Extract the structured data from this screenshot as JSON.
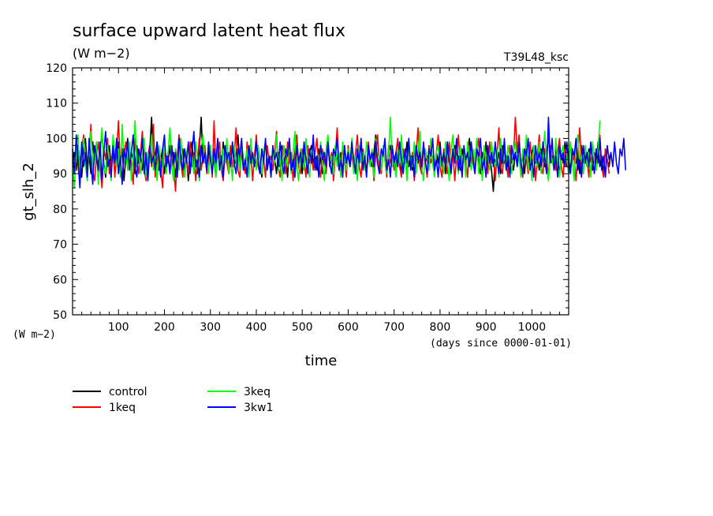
{
  "chart_data": {
    "type": "line",
    "title": "surface upward latent heat flux",
    "subtitle": "(W m−2)",
    "run_label": "T39L48_ksc",
    "xlabel": "time",
    "x_units": "(days since 0000-01-01)",
    "ylabel": "gt_slh_2",
    "y_units": "(W m−2)",
    "xlim": [
      0,
      1080
    ],
    "ylim": [
      50,
      120
    ],
    "x_ticks": [
      100,
      200,
      300,
      400,
      500,
      600,
      700,
      800,
      900,
      1000
    ],
    "y_ticks": [
      50,
      60,
      70,
      80,
      90,
      100,
      110,
      120
    ],
    "grid": false,
    "legend_position": "below",
    "x_step_days": 4,
    "series": [
      {
        "name": "control",
        "color": "#000000",
        "values": [
          93,
          96,
          91,
          98,
          94,
          89,
          97,
          100,
          92,
          95,
          90,
          99,
          94,
          97,
          91,
          96,
          102,
          93,
          89,
          95,
          98,
          92,
          96,
          90,
          94,
          99,
          93,
          97,
          88,
          95,
          100,
          92,
          96,
          94,
          90,
          98,
          93,
          95,
          91,
          97,
          94,
          89,
          96,
          106,
          92,
          95,
          99,
          91,
          94,
          97,
          90,
          95,
          93,
          98,
          92,
          96,
          89,
          94,
          101,
          93,
          97,
          91,
          95,
          88,
          96,
          99,
          92,
          94,
          90,
          97,
          106,
          93,
          95,
          91,
          96,
          98,
          92,
          94,
          89,
          97,
          95,
          91,
          99,
          93,
          96,
          90,
          94,
          98,
          92,
          95,
          101,
          93,
          97,
          91,
          94,
          96,
          90,
          98,
          93,
          95,
          92,
          97,
          94,
          89,
          96,
          99,
          93,
          95,
          91,
          97,
          94,
          90,
          96,
          92,
          98,
          93,
          95,
          89,
          97,
          94,
          92,
          96,
          101,
          93,
          95,
          90,
          97,
          94,
          92,
          96,
          98,
          93,
          95,
          91,
          97,
          94,
          90,
          96,
          93,
          99,
          92,
          95,
          91,
          97,
          94,
          93,
          96,
          90,
          98,
          93,
          95,
          92,
          97,
          94,
          91,
          96,
          93,
          99,
          92,
          95,
          90,
          97,
          94,
          92,
          96,
          101,
          93,
          95,
          91,
          97,
          94,
          92,
          96,
          98,
          93,
          95,
          91,
          97,
          94,
          90,
          96,
          93,
          99,
          92,
          95,
          91,
          97,
          94,
          93,
          96,
          90,
          98,
          93,
          95,
          92,
          97,
          94,
          91,
          96,
          93,
          99,
          92,
          95,
          90,
          97,
          94,
          92,
          96,
          98,
          93,
          95,
          91,
          97,
          94,
          92,
          96,
          100,
          93,
          95,
          91,
          97,
          94,
          90,
          96,
          93,
          99,
          92,
          95,
          91,
          85,
          94,
          93,
          96,
          90,
          98,
          93,
          95,
          92,
          97,
          94,
          91,
          96,
          93,
          99,
          92,
          95,
          90,
          97,
          94,
          92,
          96,
          98,
          93,
          95,
          91,
          97,
          94,
          92,
          96,
          101,
          93,
          95,
          91,
          97,
          94,
          90,
          96,
          93,
          99,
          92,
          95,
          91,
          97,
          94,
          93,
          96,
          90,
          98,
          93,
          95,
          92,
          97,
          94,
          91,
          96,
          93,
          99,
          92,
          95,
          90,
          97,
          94,
          92,
          96
        ]
      },
      {
        "name": "1keq",
        "color": "#ff0000",
        "values": [
          95,
          90,
          99,
          92,
          87,
          97,
          101,
          93,
          89,
          96,
          104,
          91,
          88,
          95,
          99,
          92,
          86,
          97,
          94,
          100,
          90,
          93,
          98,
          89,
          96,
          105,
          92,
          88,
          95,
          99,
          91,
          97,
          93,
          87,
          100,
          94,
          90,
          96,
          102,
          91,
          88,
          95,
          98,
          92,
          104,
          89,
          94,
          97,
          91,
          86,
          99,
          93,
          96,
          90,
          98,
          92,
          85,
          95,
          101,
          93,
          89,
          97,
          94,
          90,
          99,
          92,
          96,
          88,
          94,
          100,
          91,
          95,
          98,
          90,
          93,
          97,
          89,
          105,
          92,
          95,
          99,
          91,
          88,
          96,
          93,
          90,
          98,
          92,
          95,
          103,
          91,
          89,
          97,
          94,
          90,
          99,
          93,
          96,
          88,
          95,
          101,
          92,
          90,
          97,
          94,
          89,
          98,
          93,
          95,
          91,
          96,
          102,
          92,
          89,
          97,
          94,
          90,
          99,
          93,
          96,
          88,
          95,
          101,
          92,
          90,
          97,
          94,
          89,
          98,
          93,
          95,
          91,
          96,
          100,
          92,
          89,
          97,
          94,
          90,
          99,
          93,
          96,
          88,
          95,
          103,
          92,
          90,
          97,
          94,
          89,
          98,
          93,
          95,
          91,
          96,
          101,
          92,
          89,
          97,
          94,
          90,
          99,
          93,
          96,
          88,
          95,
          101,
          92,
          90,
          97,
          94,
          89,
          98,
          93,
          95,
          91,
          96,
          100,
          92,
          89,
          97,
          94,
          90,
          99,
          93,
          96,
          88,
          95,
          103,
          92,
          90,
          97,
          94,
          89,
          98,
          93,
          95,
          91,
          96,
          101,
          92,
          89,
          97,
          94,
          90,
          99,
          93,
          96,
          88,
          95,
          101,
          92,
          90,
          97,
          94,
          89,
          98,
          93,
          95,
          91,
          96,
          100,
          92,
          89,
          97,
          94,
          90,
          99,
          93,
          96,
          88,
          95,
          103,
          92,
          90,
          97,
          94,
          89,
          98,
          93,
          95,
          106,
          96,
          101,
          92,
          89,
          97,
          94,
          90,
          99,
          93,
          96,
          88,
          95,
          101,
          92,
          90,
          97,
          94,
          89,
          98,
          93,
          95,
          91,
          96,
          100,
          92,
          89,
          97,
          94,
          90,
          99,
          93,
          96,
          88,
          95,
          103,
          92,
          90,
          97,
          94,
          89,
          98,
          93,
          95,
          91,
          96,
          101,
          92,
          89,
          97,
          94,
          90
        ]
      },
      {
        "name": "3keq",
        "color": "#00ff00",
        "values": [
          92,
          86,
          98,
          101,
          89,
          95,
          100,
          93,
          88,
          97,
          102,
          91,
          94,
          99,
          87,
          96,
          103,
          92,
          90,
          98,
          94,
          88,
          101,
          95,
          92,
          97,
          89,
          104,
          93,
          96,
          91,
          99,
          88,
          95,
          105,
          92,
          97,
          90,
          94,
          100,
          89,
          96,
          93,
          101,
          91,
          95,
          88,
          98,
          94,
          92,
          99,
          90,
          96,
          103,
          92,
          88,
          97,
          94,
          91,
          100,
          93,
          89,
          96,
          98,
          92,
          95,
          90,
          99,
          94,
          88,
          97,
          101,
          93,
          95,
          90,
          98,
          92,
          96,
          89,
          99,
          94,
          91,
          97,
          93,
          100,
          90,
          95,
          88,
          98,
          93,
          96,
          91,
          99,
          94,
          92,
          97,
          89,
          100,
          93,
          95,
          91,
          98,
          94,
          90,
          96,
          99,
          92,
          95,
          89,
          97,
          93,
          101,
          91,
          95,
          88,
          98,
          94,
          92,
          99,
          90,
          96,
          102,
          92,
          88,
          97,
          94,
          91,
          100,
          93,
          89,
          96,
          98,
          92,
          95,
          90,
          99,
          94,
          88,
          97,
          101,
          93,
          95,
          90,
          98,
          92,
          96,
          89,
          99,
          94,
          91,
          97,
          93,
          100,
          90,
          95,
          88,
          98,
          93,
          96,
          91,
          99,
          94,
          92,
          97,
          89,
          100,
          93,
          95,
          91,
          98,
          94,
          90,
          96,
          106,
          92,
          95,
          89,
          97,
          93,
          101,
          91,
          95,
          88,
          98,
          94,
          92,
          99,
          90,
          96,
          102,
          92,
          88,
          97,
          94,
          91,
          100,
          93,
          89,
          96,
          98,
          92,
          95,
          90,
          99,
          94,
          88,
          97,
          101,
          93,
          95,
          90,
          98,
          92,
          96,
          89,
          99,
          94,
          91,
          97,
          93,
          100,
          90,
          95,
          88,
          98,
          93,
          96,
          91,
          99,
          94,
          92,
          97,
          89,
          100,
          93,
          95,
          91,
          98,
          94,
          90,
          96,
          99,
          92,
          95,
          89,
          97,
          93,
          101,
          91,
          95,
          88,
          98,
          94,
          92,
          99,
          90,
          96,
          102,
          92,
          88,
          97,
          94,
          91,
          100,
          93,
          89,
          96,
          98,
          92,
          95,
          90,
          99,
          94,
          88,
          97,
          101,
          93,
          95,
          90,
          98,
          92,
          96,
          89,
          99,
          94,
          91,
          97,
          105
        ]
      },
      {
        "name": "3kw1",
        "color": "#0000ff",
        "values": [
          97,
          90,
          101,
          94,
          86,
          99,
          92,
          96,
          89,
          100,
          93,
          87,
          98,
          95,
          91,
          99,
          88,
          96,
          102,
          92,
          94,
          89,
          98,
          93,
          100,
          90,
          95,
          87,
          97,
          94,
          99,
          91,
          96,
          101,
          92,
          89,
          97,
          94,
          100,
          90,
          96,
          88,
          98,
          93,
          95,
          91,
          99,
          94,
          89,
          97,
          101,
          92,
          95,
          90,
          98,
          93,
          96,
          89,
          100,
          94,
          91,
          97,
          93,
          99,
          90,
          96,
          102,
          92,
          94,
          89,
          98,
          93,
          96,
          91,
          99,
          94,
          90,
          97,
          93,
          100,
          91,
          95,
          89,
          98,
          94,
          96,
          92,
          99,
          93,
          90,
          97,
          95,
          100,
          91,
          94,
          89,
          98,
          93,
          96,
          92,
          99,
          94,
          90,
          97,
          93,
          100,
          91,
          95,
          89,
          98,
          94,
          96,
          92,
          99,
          93,
          90,
          97,
          95,
          100,
          91,
          94,
          89,
          98,
          93,
          96,
          92,
          99,
          94,
          90,
          97,
          93,
          101,
          91,
          95,
          89,
          98,
          94,
          96,
          92,
          99,
          93,
          90,
          97,
          95,
          100,
          91,
          94,
          89,
          98,
          93,
          96,
          92,
          99,
          94,
          90,
          97,
          93,
          100,
          91,
          95,
          89,
          98,
          94,
          96,
          92,
          99,
          93,
          90,
          97,
          95,
          100,
          91,
          94,
          89,
          98,
          93,
          96,
          92,
          99,
          94,
          90,
          97,
          93,
          100,
          91,
          95,
          89,
          98,
          94,
          96,
          92,
          99,
          93,
          90,
          97,
          95,
          100,
          91,
          94,
          89,
          98,
          93,
          96,
          92,
          99,
          94,
          90,
          97,
          93,
          100,
          91,
          95,
          89,
          98,
          94,
          96,
          92,
          99,
          93,
          90,
          97,
          95,
          100,
          91,
          94,
          89,
          98,
          93,
          96,
          92,
          99,
          94,
          90,
          97,
          93,
          100,
          91,
          95,
          89,
          98,
          94,
          96,
          92,
          99,
          93,
          90,
          97,
          95,
          100,
          91,
          94,
          89,
          98,
          93,
          96,
          92,
          99,
          94,
          90,
          106,
          93,
          100,
          91,
          95,
          89,
          98,
          94,
          96,
          92,
          99,
          93,
          90,
          97,
          95,
          100,
          91,
          94,
          89,
          98,
          93,
          96,
          92,
          99,
          94,
          90,
          97,
          93,
          100,
          91,
          95,
          89,
          98,
          94,
          96,
          92,
          99,
          93,
          90,
          97,
          95,
          100,
          91
        ]
      }
    ]
  }
}
